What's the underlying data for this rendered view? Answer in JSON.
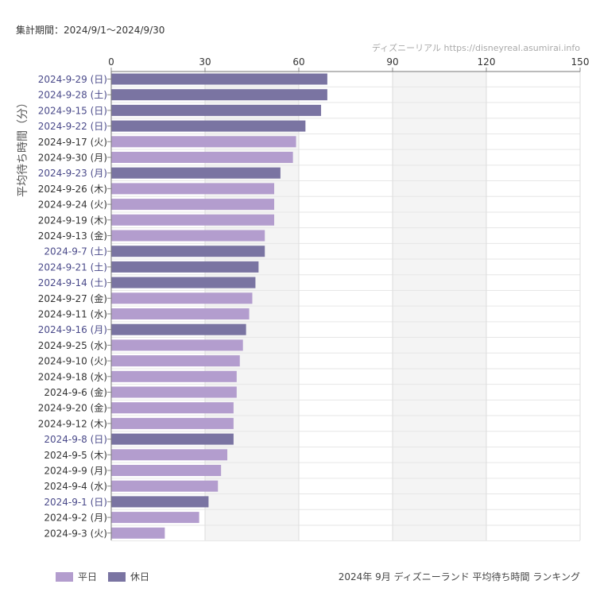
{
  "header": {
    "period": "集計期間：2024/9/1～2024/9/30",
    "source": "ディズニーリアル https://disneyreal.asumirai.info"
  },
  "footer": {
    "caption": "2024年 9月 ディズニーランド 平均待ち時間 ランキング"
  },
  "legend": [
    {
      "label": "平日",
      "color": "#b39dce"
    },
    {
      "label": "休日",
      "color": "#7a74a2"
    }
  ],
  "colors": {
    "weekday_bar": "#b39dce",
    "holiday_bar": "#7a74a2",
    "weekday_label": "#333333",
    "holiday_label": "#4a4a8a",
    "shade": "#f4f4f4"
  },
  "chart_data": {
    "type": "bar",
    "orientation": "horizontal",
    "ylabel": "平均待ち時間（分）",
    "xlim": [
      0,
      150
    ],
    "xticks": [
      0,
      30,
      60,
      90,
      120,
      150
    ],
    "grid": true,
    "legend_position": "bottom-left",
    "shaded_x_ranges": [
      [
        30,
        60
      ],
      [
        90,
        120
      ]
    ],
    "categories": [
      "2024-9-29 (日)",
      "2024-9-28 (土)",
      "2024-9-15 (日)",
      "2024-9-22 (日)",
      "2024-9-17 (火)",
      "2024-9-30 (月)",
      "2024-9-23 (月)",
      "2024-9-26 (木)",
      "2024-9-24 (火)",
      "2024-9-19 (木)",
      "2024-9-13 (金)",
      "2024-9-7 (土)",
      "2024-9-21 (土)",
      "2024-9-14 (土)",
      "2024-9-27 (金)",
      "2024-9-11 (水)",
      "2024-9-16 (月)",
      "2024-9-25 (水)",
      "2024-9-10 (火)",
      "2024-9-18 (水)",
      "2024-9-6 (金)",
      "2024-9-20 (金)",
      "2024-9-12 (木)",
      "2024-9-8 (日)",
      "2024-9-5 (木)",
      "2024-9-9 (月)",
      "2024-9-4 (水)",
      "2024-9-1 (日)",
      "2024-9-2 (月)",
      "2024-9-3 (火)"
    ],
    "values": [
      69,
      69,
      67,
      62,
      59,
      58,
      54,
      52,
      52,
      52,
      49,
      49,
      47,
      46,
      45,
      44,
      43,
      42,
      41,
      40,
      40,
      39,
      39,
      39,
      37,
      35,
      34,
      31,
      28,
      17
    ],
    "day_type": [
      "休日",
      "休日",
      "休日",
      "休日",
      "平日",
      "平日",
      "休日",
      "平日",
      "平日",
      "平日",
      "平日",
      "休日",
      "休日",
      "休日",
      "平日",
      "平日",
      "休日",
      "平日",
      "平日",
      "平日",
      "平日",
      "平日",
      "平日",
      "休日",
      "平日",
      "平日",
      "平日",
      "休日",
      "平日",
      "平日"
    ]
  }
}
